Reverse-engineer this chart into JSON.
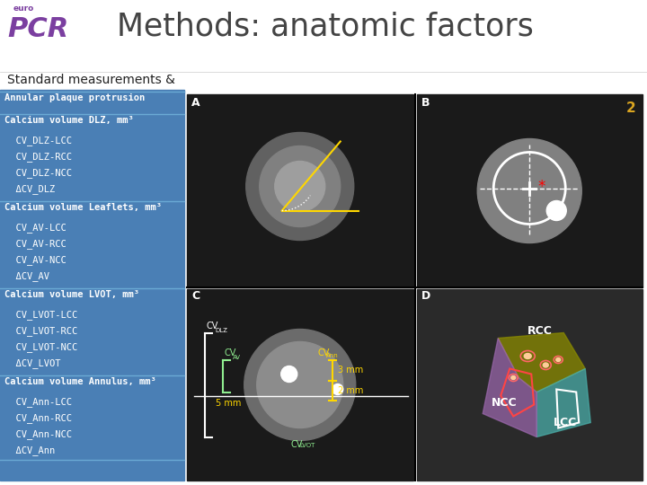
{
  "title": "Methods: anatomic factors",
  "subtitle": "Standard measurements &",
  "bg_color": "#ffffff",
  "sidebar_bg": "#4a7fb5",
  "sidebar_text_color": "#ffffff",
  "sidebar_border_color": "#6aaad4",
  "logo_color": "#7b3fa0",
  "title_color": "#444444",
  "section_texts": [
    {
      "header": "Annular plaque protrusion",
      "items": []
    },
    {
      "header": "Calcium volume DLZ, mm³",
      "items": [
        "  CV_DLZ-LCC",
        "  CV_DLZ-RCC",
        "  CV_DLZ-NCC",
        "  ΔCV_DLZ"
      ]
    },
    {
      "header": "Calcium volume Leaflets, mm³",
      "items": [
        "  CV_AV-LCC",
        "  CV_AV-RCC",
        "  CV_AV-NCC",
        "  ΔCV_AV"
      ]
    },
    {
      "header": "Calcium volume LVOT, mm³",
      "items": [
        "  CV_LVOT-LCC",
        "  CV_LVOT-RCC",
        "  CV_LVOT-NCC",
        "  ΔCV_LVOT"
      ]
    },
    {
      "header": "Calcium volume Annulus, mm³",
      "items": [
        "  CV_Ann-LCC",
        "  CV_Ann-RCC",
        "  CV_Ann-NCC",
        "  ΔCV_Ann"
      ]
    }
  ]
}
